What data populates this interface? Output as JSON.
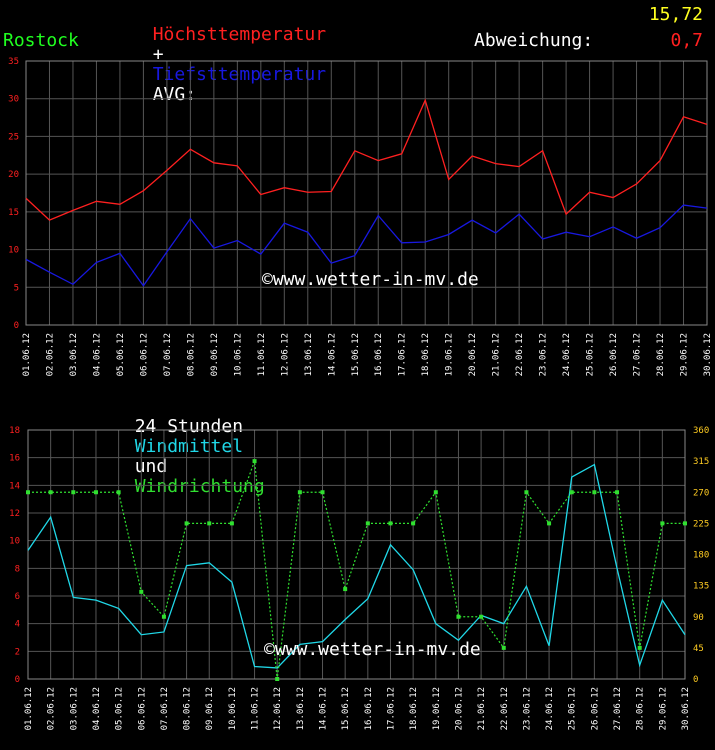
{
  "header": {
    "max_label": "Höchsttemperatur",
    "plus": "+",
    "min_label": "Tiefsttemperatur",
    "avg_label": "AVG:",
    "avg_value": "15,72",
    "location": "Rostock",
    "deviation_label": "Abweichung:",
    "deviation_value": "0,7"
  },
  "wind_title": {
    "prefix": "24 Stunden",
    "windmittel": "Windmittel",
    "und": "und",
    "windrichtung": "Windrichtung"
  },
  "watermark": "©www.wetter-in-mv.de",
  "colors": {
    "max": "#ff2020",
    "min": "#1818e0",
    "speed": "#20d8e8",
    "direction": "#30e030",
    "avg": "#ffff20",
    "location": "#20ff20",
    "axis_left": "#ff2020",
    "axis_right": "#ffcc22",
    "grid": "#555555"
  },
  "chart_data": [
    {
      "type": "line",
      "categories": [
        "01.06.12",
        "02.06.12",
        "03.06.12",
        "04.06.12",
        "05.06.12",
        "06.06.12",
        "07.06.12",
        "08.06.12",
        "09.06.12",
        "10.06.12",
        "11.06.12",
        "12.06.12",
        "13.06.12",
        "14.06.12",
        "15.06.12",
        "16.06.12",
        "17.06.12",
        "18.06.12",
        "19.06.12",
        "20.06.12",
        "21.06.12",
        "22.06.12",
        "23.06.12",
        "24.06.12",
        "25.06.12",
        "26.06.12",
        "27.06.12",
        "28.06.12",
        "29.06.12",
        "30.06.12"
      ],
      "series": [
        {
          "name": "Höchsttemperatur",
          "color": "#ff2020",
          "values": [
            16.8,
            13.9,
            15.2,
            16.4,
            16.0,
            17.8,
            20.5,
            23.3,
            21.5,
            21.1,
            17.3,
            18.2,
            17.6,
            17.7,
            23.1,
            21.8,
            22.7,
            29.8,
            19.3,
            22.4,
            21.4,
            21.0,
            23.1,
            14.7,
            17.6,
            16.9,
            18.7,
            21.8,
            27.6,
            26.6
          ]
        },
        {
          "name": "Tiefsttemperatur",
          "color": "#1818e0",
          "values": [
            8.7,
            7.0,
            5.4,
            8.3,
            9.5,
            5.2,
            9.7,
            14.1,
            10.2,
            11.2,
            9.4,
            13.5,
            12.3,
            8.2,
            9.2,
            14.5,
            10.9,
            11.0,
            12.0,
            13.9,
            12.2,
            14.7,
            11.4,
            12.3,
            11.7,
            13.0,
            11.5,
            12.9,
            15.9,
            15.5
          ]
        }
      ],
      "ylim": [
        0,
        35
      ],
      "yticks": [
        0,
        5,
        10,
        15,
        20,
        25,
        30,
        35
      ],
      "grid": true
    },
    {
      "type": "line",
      "categories": [
        "01.06.12",
        "02.06.12",
        "03.06.12",
        "04.06.12",
        "05.06.12",
        "06.06.12",
        "07.06.12",
        "08.06.12",
        "09.06.12",
        "10.06.12",
        "11.06.12",
        "12.06.12",
        "13.06.12",
        "14.06.12",
        "15.06.12",
        "16.06.12",
        "17.06.12",
        "18.06.12",
        "19.06.12",
        "20.06.12",
        "21.06.12",
        "22.06.12",
        "23.06.12",
        "24.06.12",
        "25.06.12",
        "26.06.12",
        "27.06.12",
        "28.06.12",
        "29.06.12",
        "30.06.12"
      ],
      "series": [
        {
          "name": "Windmittel",
          "axis": "left",
          "color": "#20d8e8",
          "values": [
            9.3,
            11.7,
            5.9,
            5.7,
            5.1,
            3.2,
            3.4,
            8.2,
            8.4,
            7.0,
            0.9,
            0.8,
            2.5,
            2.7,
            4.3,
            5.8,
            9.7,
            7.9,
            4.0,
            2.8,
            4.6,
            4.0,
            6.7,
            2.4,
            14.6,
            15.5,
            8.0,
            1.0,
            5.7,
            3.2
          ]
        },
        {
          "name": "Windrichtung",
          "axis": "right",
          "style": "dotted",
          "color": "#30e030",
          "values": [
            270,
            270,
            270,
            270,
            270,
            126,
            90,
            225,
            225,
            225,
            315,
            0,
            270,
            270,
            130,
            225,
            225,
            225,
            270,
            90,
            90,
            45,
            270,
            225,
            270,
            270,
            270,
            45,
            225,
            225
          ]
        }
      ],
      "ylim_left": [
        0,
        18
      ],
      "yticks_left": [
        0,
        2,
        4,
        6,
        8,
        10,
        12,
        14,
        16,
        18
      ],
      "ylim_right": [
        0,
        360
      ],
      "yticks_right": [
        0,
        45,
        90,
        135,
        180,
        225,
        270,
        315,
        360
      ],
      "grid": true
    }
  ]
}
